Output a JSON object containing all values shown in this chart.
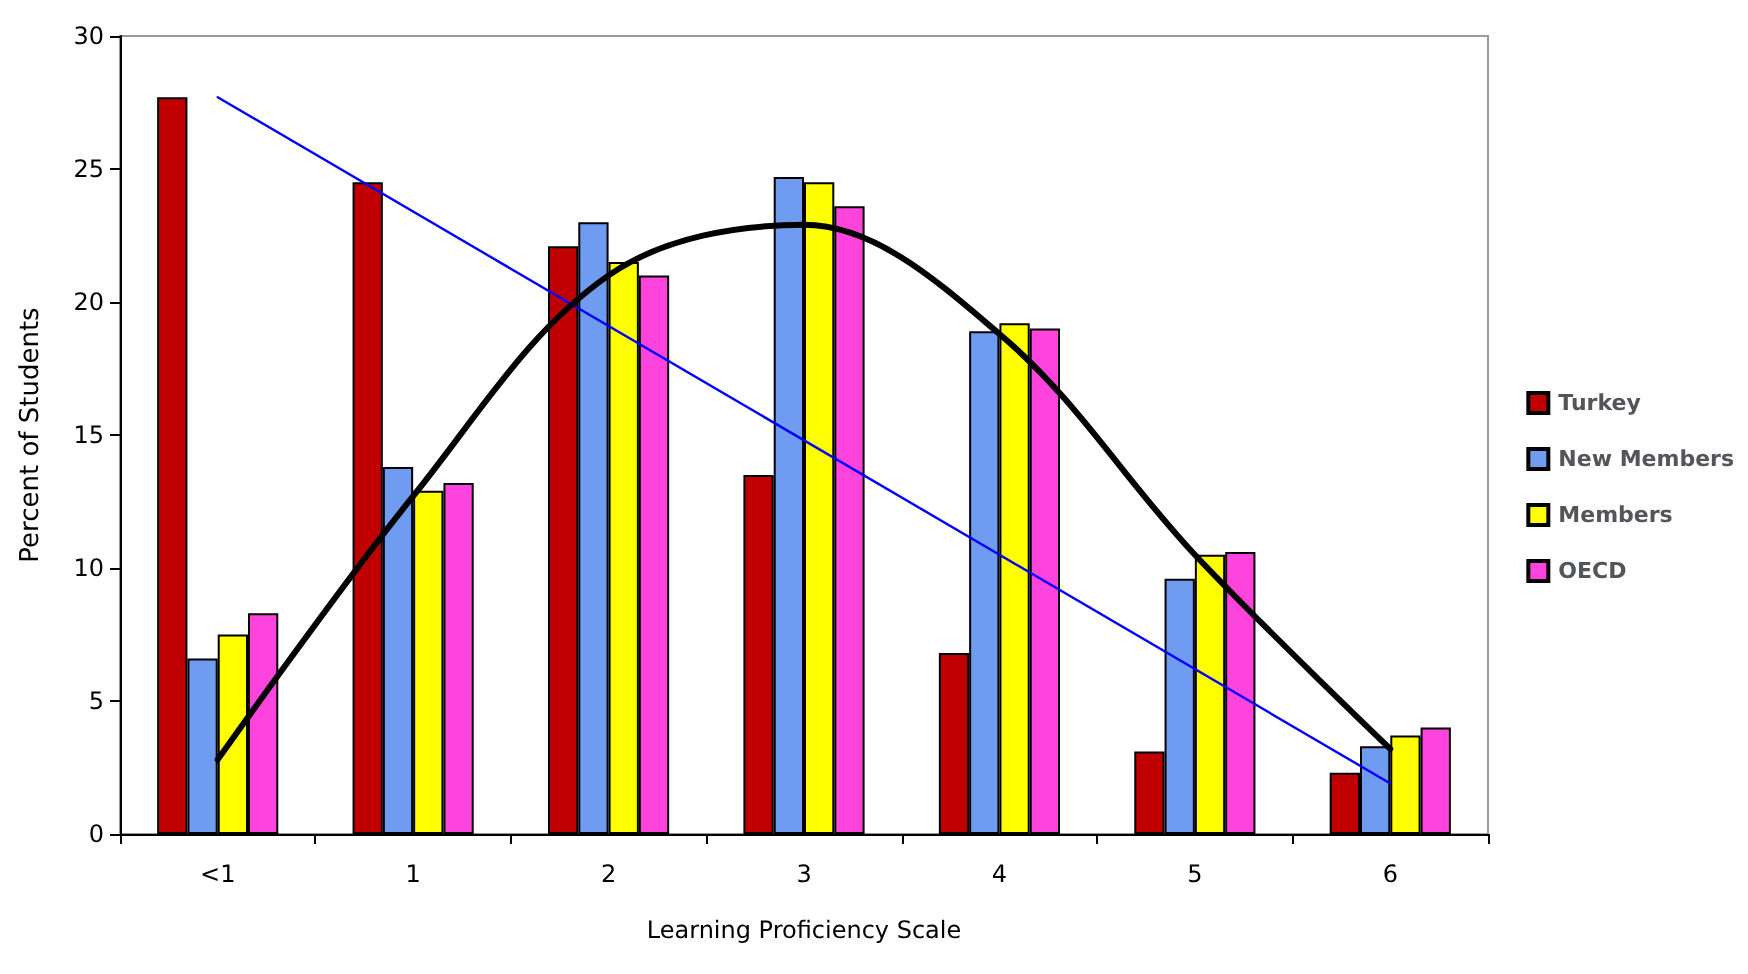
{
  "chart_data": {
    "type": "bar",
    "xlabel": "Learning Proficiency Scale",
    "ylabel": "Percent of Students",
    "categories": [
      "<1",
      "1",
      "2",
      "3",
      "4",
      "5",
      "6"
    ],
    "series": [
      {
        "name": "Turkey",
        "color": "#c00000",
        "values": [
          27.7,
          24.5,
          22.1,
          13.5,
          6.8,
          3.1,
          2.3
        ]
      },
      {
        "name": "New Members",
        "color": "#6f9cf0",
        "values": [
          6.6,
          13.8,
          23.0,
          24.7,
          18.9,
          9.6,
          3.3
        ]
      },
      {
        "name": "Members",
        "color": "#ffff00",
        "values": [
          7.5,
          12.9,
          21.5,
          24.5,
          19.2,
          10.5,
          3.7
        ]
      },
      {
        "name": "OECD",
        "color": "#ff44dd",
        "values": [
          8.3,
          13.2,
          21.0,
          23.6,
          19.0,
          10.6,
          4.0
        ]
      },
      {
        "type": "line",
        "color": "#0000ff",
        "x": [
          "<1",
          "6"
        ],
        "values": [
          27.7,
          1.9
        ]
      },
      {
        "type": "line",
        "color": "#000000",
        "x": [
          "<1",
          "1",
          "2",
          "3",
          "4",
          "5",
          "6"
        ],
        "values": [
          2.8,
          12.7,
          21.0,
          22.9,
          18.8,
          10.5,
          3.2
        ]
      }
    ],
    "ylim": [
      0,
      30
    ],
    "yticks": [
      0,
      5,
      10,
      15,
      20,
      25,
      30
    ],
    "grid": false,
    "legend": "right",
    "marker": "none"
  }
}
